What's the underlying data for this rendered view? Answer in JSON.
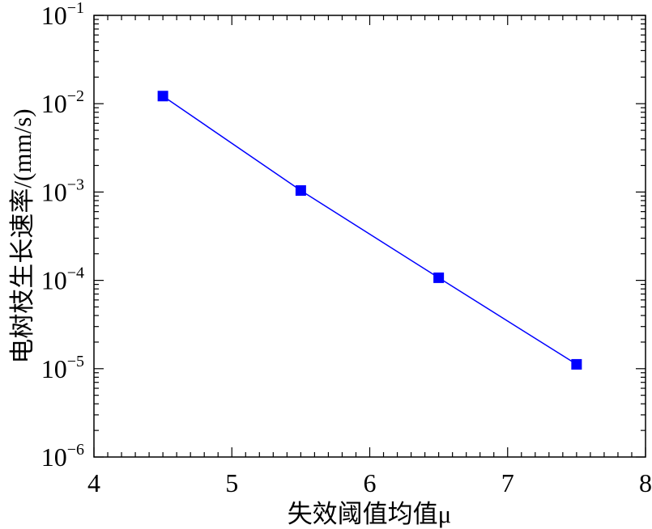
{
  "chart_data": {
    "type": "line",
    "title": "",
    "xlabel": "失效阈值均值μ",
    "ylabel": "电树枝生长速率/(mm/s)",
    "x_scale": "linear",
    "y_scale": "log",
    "xlim": [
      4,
      8
    ],
    "ylim": [
      1e-06,
      0.1
    ],
    "x_ticks": [
      "4",
      "5",
      "6",
      "7",
      "8"
    ],
    "y_ticks": [
      {
        "base": "10",
        "exp": "-1",
        "value": 0.1
      },
      {
        "base": "10",
        "exp": "-2",
        "value": 0.01
      },
      {
        "base": "10",
        "exp": "-3",
        "value": 0.001
      },
      {
        "base": "10",
        "exp": "-4",
        "value": 0.0001
      },
      {
        "base": "10",
        "exp": "-5",
        "value": 1e-05
      },
      {
        "base": "10",
        "exp": "-6",
        "value": 1e-06
      }
    ],
    "grid": false,
    "legend": "none",
    "series": [
      {
        "color": "#0000ff",
        "marker": "square",
        "x": [
          4.5,
          5.5,
          6.5,
          7.5
        ],
        "y": [
          0.0122,
          0.00104,
          0.000107,
          1.12e-05
        ]
      }
    ]
  }
}
